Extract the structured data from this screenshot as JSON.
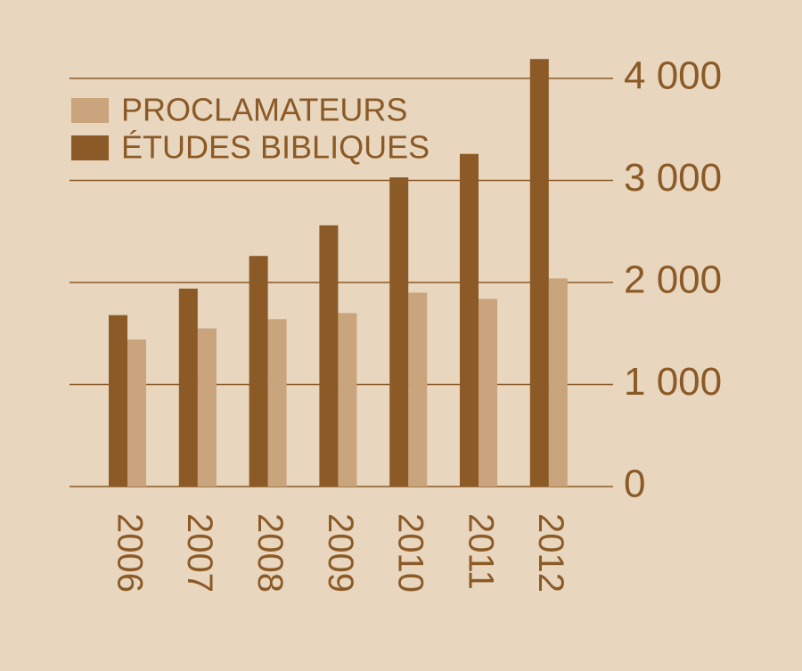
{
  "chart_data": {
    "type": "bar",
    "categories": [
      "2006",
      "2007",
      "2008",
      "2009",
      "2010",
      "2011",
      "2012"
    ],
    "series": [
      {
        "name": "PROCLAMATEURS",
        "color": "#c9a47c",
        "values": [
          1440,
          1550,
          1640,
          1700,
          1900,
          1840,
          2040
        ]
      },
      {
        "name": "ÉTUDES BIBLIQUES",
        "color": "#8b5a26",
        "values": [
          1680,
          1940,
          2260,
          2560,
          3030,
          3260,
          4190
        ]
      }
    ],
    "ylim": [
      0,
      4000
    ],
    "yticks": [
      0,
      {
        "value": 1000,
        "label": "1 000"
      },
      {
        "value": 2000,
        "label": "2 000"
      },
      {
        "value": 3000,
        "label": "3 000"
      },
      {
        "value": 4000,
        "label": "4 000"
      }
    ],
    "grid": true,
    "legend": "top-left"
  }
}
